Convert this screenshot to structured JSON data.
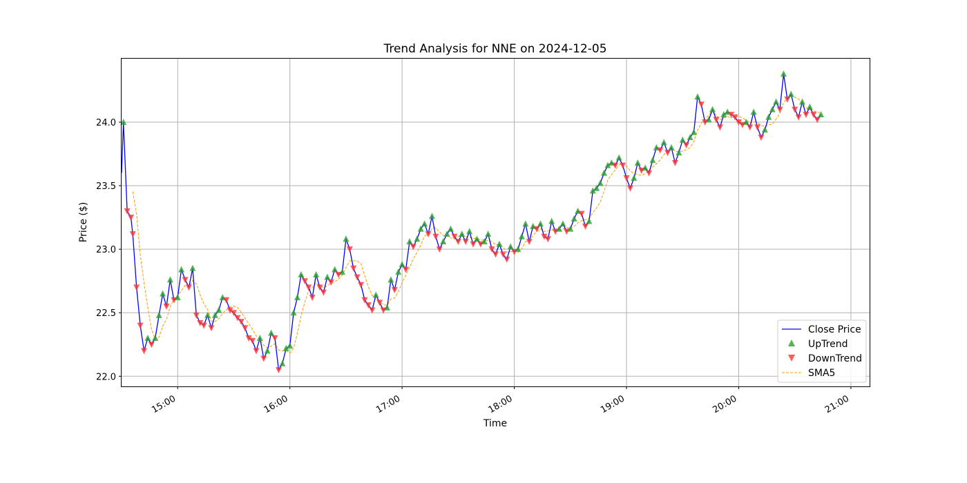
{
  "chart_data": {
    "type": "line",
    "title": "Trend Analysis for NNE on 2024-12-05",
    "xlabel": "Time",
    "ylabel": "Price ($)",
    "x_ticks": [
      "15:00",
      "16:00",
      "17:00",
      "18:00",
      "19:00",
      "20:00",
      "21:00"
    ],
    "y_ticks": [
      "22.0",
      "22.5",
      "23.0",
      "23.5",
      "24.0"
    ],
    "xlim": [
      "14:30",
      "21:10"
    ],
    "ylim": [
      21.92,
      24.5
    ],
    "grid": true,
    "legend_position": "lower-right",
    "colors": {
      "close": "#0000ff",
      "up": "#2ca02c",
      "down": "#ff3333",
      "sma": "#ff9900",
      "grid": "#b0b0b0"
    },
    "anchors": [
      [
        "14:30",
        23.6
      ],
      [
        "14:31",
        24.0
      ],
      [
        "14:33",
        23.3
      ],
      [
        "14:35",
        23.25
      ],
      [
        "14:36",
        23.12
      ],
      [
        "14:38",
        22.7
      ],
      [
        "14:40",
        22.4
      ],
      [
        "14:42",
        22.2
      ],
      [
        "14:44",
        22.3
      ],
      [
        "14:46",
        22.25
      ],
      [
        "14:48",
        22.3
      ],
      [
        "14:50",
        22.48
      ],
      [
        "14:52",
        22.65
      ],
      [
        "14:54",
        22.55
      ],
      [
        "14:56",
        22.76
      ],
      [
        "14:58",
        22.6
      ],
      [
        "15:00",
        22.62
      ],
      [
        "15:02",
        22.84
      ],
      [
        "15:04",
        22.76
      ],
      [
        "15:06",
        22.7
      ],
      [
        "15:08",
        22.85
      ],
      [
        "15:10",
        22.48
      ],
      [
        "15:12",
        22.42
      ],
      [
        "15:14",
        22.4
      ],
      [
        "15:16",
        22.48
      ],
      [
        "15:18",
        22.38
      ],
      [
        "15:20",
        22.48
      ],
      [
        "15:22",
        22.52
      ],
      [
        "15:24",
        22.62
      ],
      [
        "15:26",
        22.6
      ],
      [
        "15:28",
        22.52
      ],
      [
        "15:30",
        22.5
      ],
      [
        "15:32",
        22.46
      ],
      [
        "15:34",
        22.43
      ],
      [
        "15:36",
        22.38
      ],
      [
        "15:38",
        22.3
      ],
      [
        "15:40",
        22.28
      ],
      [
        "15:42",
        22.2
      ],
      [
        "15:44",
        22.3
      ],
      [
        "15:46",
        22.14
      ],
      [
        "15:48",
        22.2
      ],
      [
        "15:50",
        22.34
      ],
      [
        "15:52",
        22.3
      ],
      [
        "15:54",
        22.05
      ],
      [
        "15:56",
        22.1
      ],
      [
        "15:58",
        22.22
      ],
      [
        "16:00",
        22.24
      ],
      [
        "16:02",
        22.5
      ],
      [
        "16:04",
        22.62
      ],
      [
        "16:06",
        22.8
      ],
      [
        "16:08",
        22.75
      ],
      [
        "16:10",
        22.7
      ],
      [
        "16:12",
        22.62
      ],
      [
        "16:14",
        22.8
      ],
      [
        "16:16",
        22.7
      ],
      [
        "16:18",
        22.66
      ],
      [
        "16:20",
        22.78
      ],
      [
        "16:22",
        22.74
      ],
      [
        "16:24",
        22.84
      ],
      [
        "16:26",
        22.8
      ],
      [
        "16:28",
        22.82
      ],
      [
        "16:30",
        23.08
      ],
      [
        "16:32",
        23.0
      ],
      [
        "16:34",
        22.85
      ],
      [
        "16:36",
        22.78
      ],
      [
        "16:38",
        22.72
      ],
      [
        "16:40",
        22.6
      ],
      [
        "16:42",
        22.56
      ],
      [
        "16:44",
        22.52
      ],
      [
        "16:46",
        22.64
      ],
      [
        "16:48",
        22.58
      ],
      [
        "16:50",
        22.52
      ],
      [
        "16:52",
        22.54
      ],
      [
        "16:54",
        22.76
      ],
      [
        "16:56",
        22.68
      ],
      [
        "16:58",
        22.82
      ],
      [
        "17:00",
        22.88
      ],
      [
        "17:02",
        22.84
      ],
      [
        "17:04",
        23.06
      ],
      [
        "17:06",
        23.02
      ],
      [
        "17:08",
        23.08
      ],
      [
        "17:10",
        23.16
      ],
      [
        "17:12",
        23.2
      ],
      [
        "17:14",
        23.12
      ],
      [
        "17:16",
        23.26
      ],
      [
        "17:18",
        23.1
      ],
      [
        "17:20",
        23.0
      ],
      [
        "17:22",
        23.06
      ],
      [
        "17:24",
        23.12
      ],
      [
        "17:26",
        23.16
      ],
      [
        "17:28",
        23.1
      ],
      [
        "17:30",
        23.06
      ],
      [
        "17:32",
        23.12
      ],
      [
        "17:34",
        23.06
      ],
      [
        "17:36",
        23.14
      ],
      [
        "17:38",
        23.04
      ],
      [
        "17:40",
        23.08
      ],
      [
        "17:42",
        23.04
      ],
      [
        "17:44",
        23.06
      ],
      [
        "17:46",
        23.12
      ],
      [
        "17:48",
        23.0
      ],
      [
        "17:50",
        22.96
      ],
      [
        "17:52",
        23.04
      ],
      [
        "17:54",
        22.96
      ],
      [
        "17:56",
        22.92
      ],
      [
        "17:58",
        23.02
      ],
      [
        "18:00",
        22.98
      ],
      [
        "18:02",
        23.0
      ],
      [
        "18:04",
        23.1
      ],
      [
        "18:06",
        23.2
      ],
      [
        "18:08",
        23.06
      ],
      [
        "18:10",
        23.18
      ],
      [
        "18:12",
        23.16
      ],
      [
        "18:14",
        23.2
      ],
      [
        "18:16",
        23.1
      ],
      [
        "18:18",
        23.08
      ],
      [
        "18:20",
        23.22
      ],
      [
        "18:22",
        23.14
      ],
      [
        "18:24",
        23.16
      ],
      [
        "18:26",
        23.2
      ],
      [
        "18:28",
        23.14
      ],
      [
        "18:30",
        23.16
      ],
      [
        "18:32",
        23.24
      ],
      [
        "18:34",
        23.3
      ],
      [
        "18:36",
        23.28
      ],
      [
        "18:38",
        23.18
      ],
      [
        "18:40",
        23.22
      ],
      [
        "18:42",
        23.46
      ],
      [
        "18:44",
        23.48
      ],
      [
        "18:46",
        23.52
      ],
      [
        "18:48",
        23.6
      ],
      [
        "18:50",
        23.66
      ],
      [
        "18:52",
        23.68
      ],
      [
        "18:54",
        23.66
      ],
      [
        "18:56",
        23.72
      ],
      [
        "18:58",
        23.66
      ],
      [
        "19:00",
        23.56
      ],
      [
        "19:02",
        23.48
      ],
      [
        "19:04",
        23.56
      ],
      [
        "19:06",
        23.68
      ],
      [
        "19:08",
        23.62
      ],
      [
        "19:10",
        23.64
      ],
      [
        "19:12",
        23.6
      ],
      [
        "19:14",
        23.7
      ],
      [
        "19:16",
        23.8
      ],
      [
        "19:18",
        23.78
      ],
      [
        "19:20",
        23.84
      ],
      [
        "19:22",
        23.76
      ],
      [
        "19:24",
        23.8
      ],
      [
        "19:26",
        23.68
      ],
      [
        "19:28",
        23.76
      ],
      [
        "19:30",
        23.86
      ],
      [
        "19:32",
        23.82
      ],
      [
        "19:34",
        23.88
      ],
      [
        "19:36",
        23.92
      ],
      [
        "19:38",
        24.2
      ],
      [
        "19:40",
        24.14
      ],
      [
        "19:42",
        24.0
      ],
      [
        "19:44",
        24.02
      ],
      [
        "19:46",
        24.1
      ],
      [
        "19:48",
        24.02
      ],
      [
        "19:50",
        23.96
      ],
      [
        "19:52",
        24.06
      ],
      [
        "19:54",
        24.08
      ],
      [
        "19:56",
        24.06
      ],
      [
        "19:58",
        24.04
      ],
      [
        "20:00",
        24.0
      ],
      [
        "20:02",
        23.98
      ],
      [
        "20:04",
        24.0
      ],
      [
        "20:06",
        23.96
      ],
      [
        "20:08",
        24.08
      ],
      [
        "20:10",
        23.96
      ],
      [
        "20:12",
        23.88
      ],
      [
        "20:14",
        23.94
      ],
      [
        "20:16",
        24.04
      ],
      [
        "20:18",
        24.1
      ],
      [
        "20:20",
        24.16
      ],
      [
        "20:22",
        24.1
      ],
      [
        "20:24",
        24.38
      ],
      [
        "20:26",
        24.18
      ],
      [
        "20:28",
        24.22
      ],
      [
        "20:30",
        24.1
      ],
      [
        "20:32",
        24.04
      ],
      [
        "20:34",
        24.16
      ],
      [
        "20:36",
        24.06
      ],
      [
        "20:38",
        24.12
      ],
      [
        "20:40",
        24.06
      ],
      [
        "20:42",
        24.02
      ],
      [
        "20:44",
        24.06
      ]
    ],
    "series": [
      {
        "name": "Close Price",
        "style": "line"
      },
      {
        "name": "UpTrend",
        "style": "marker-triangle-up"
      },
      {
        "name": "DownTrend",
        "style": "marker-triangle-down"
      },
      {
        "name": "SMA5",
        "style": "dashed-line",
        "window": 5
      }
    ]
  }
}
